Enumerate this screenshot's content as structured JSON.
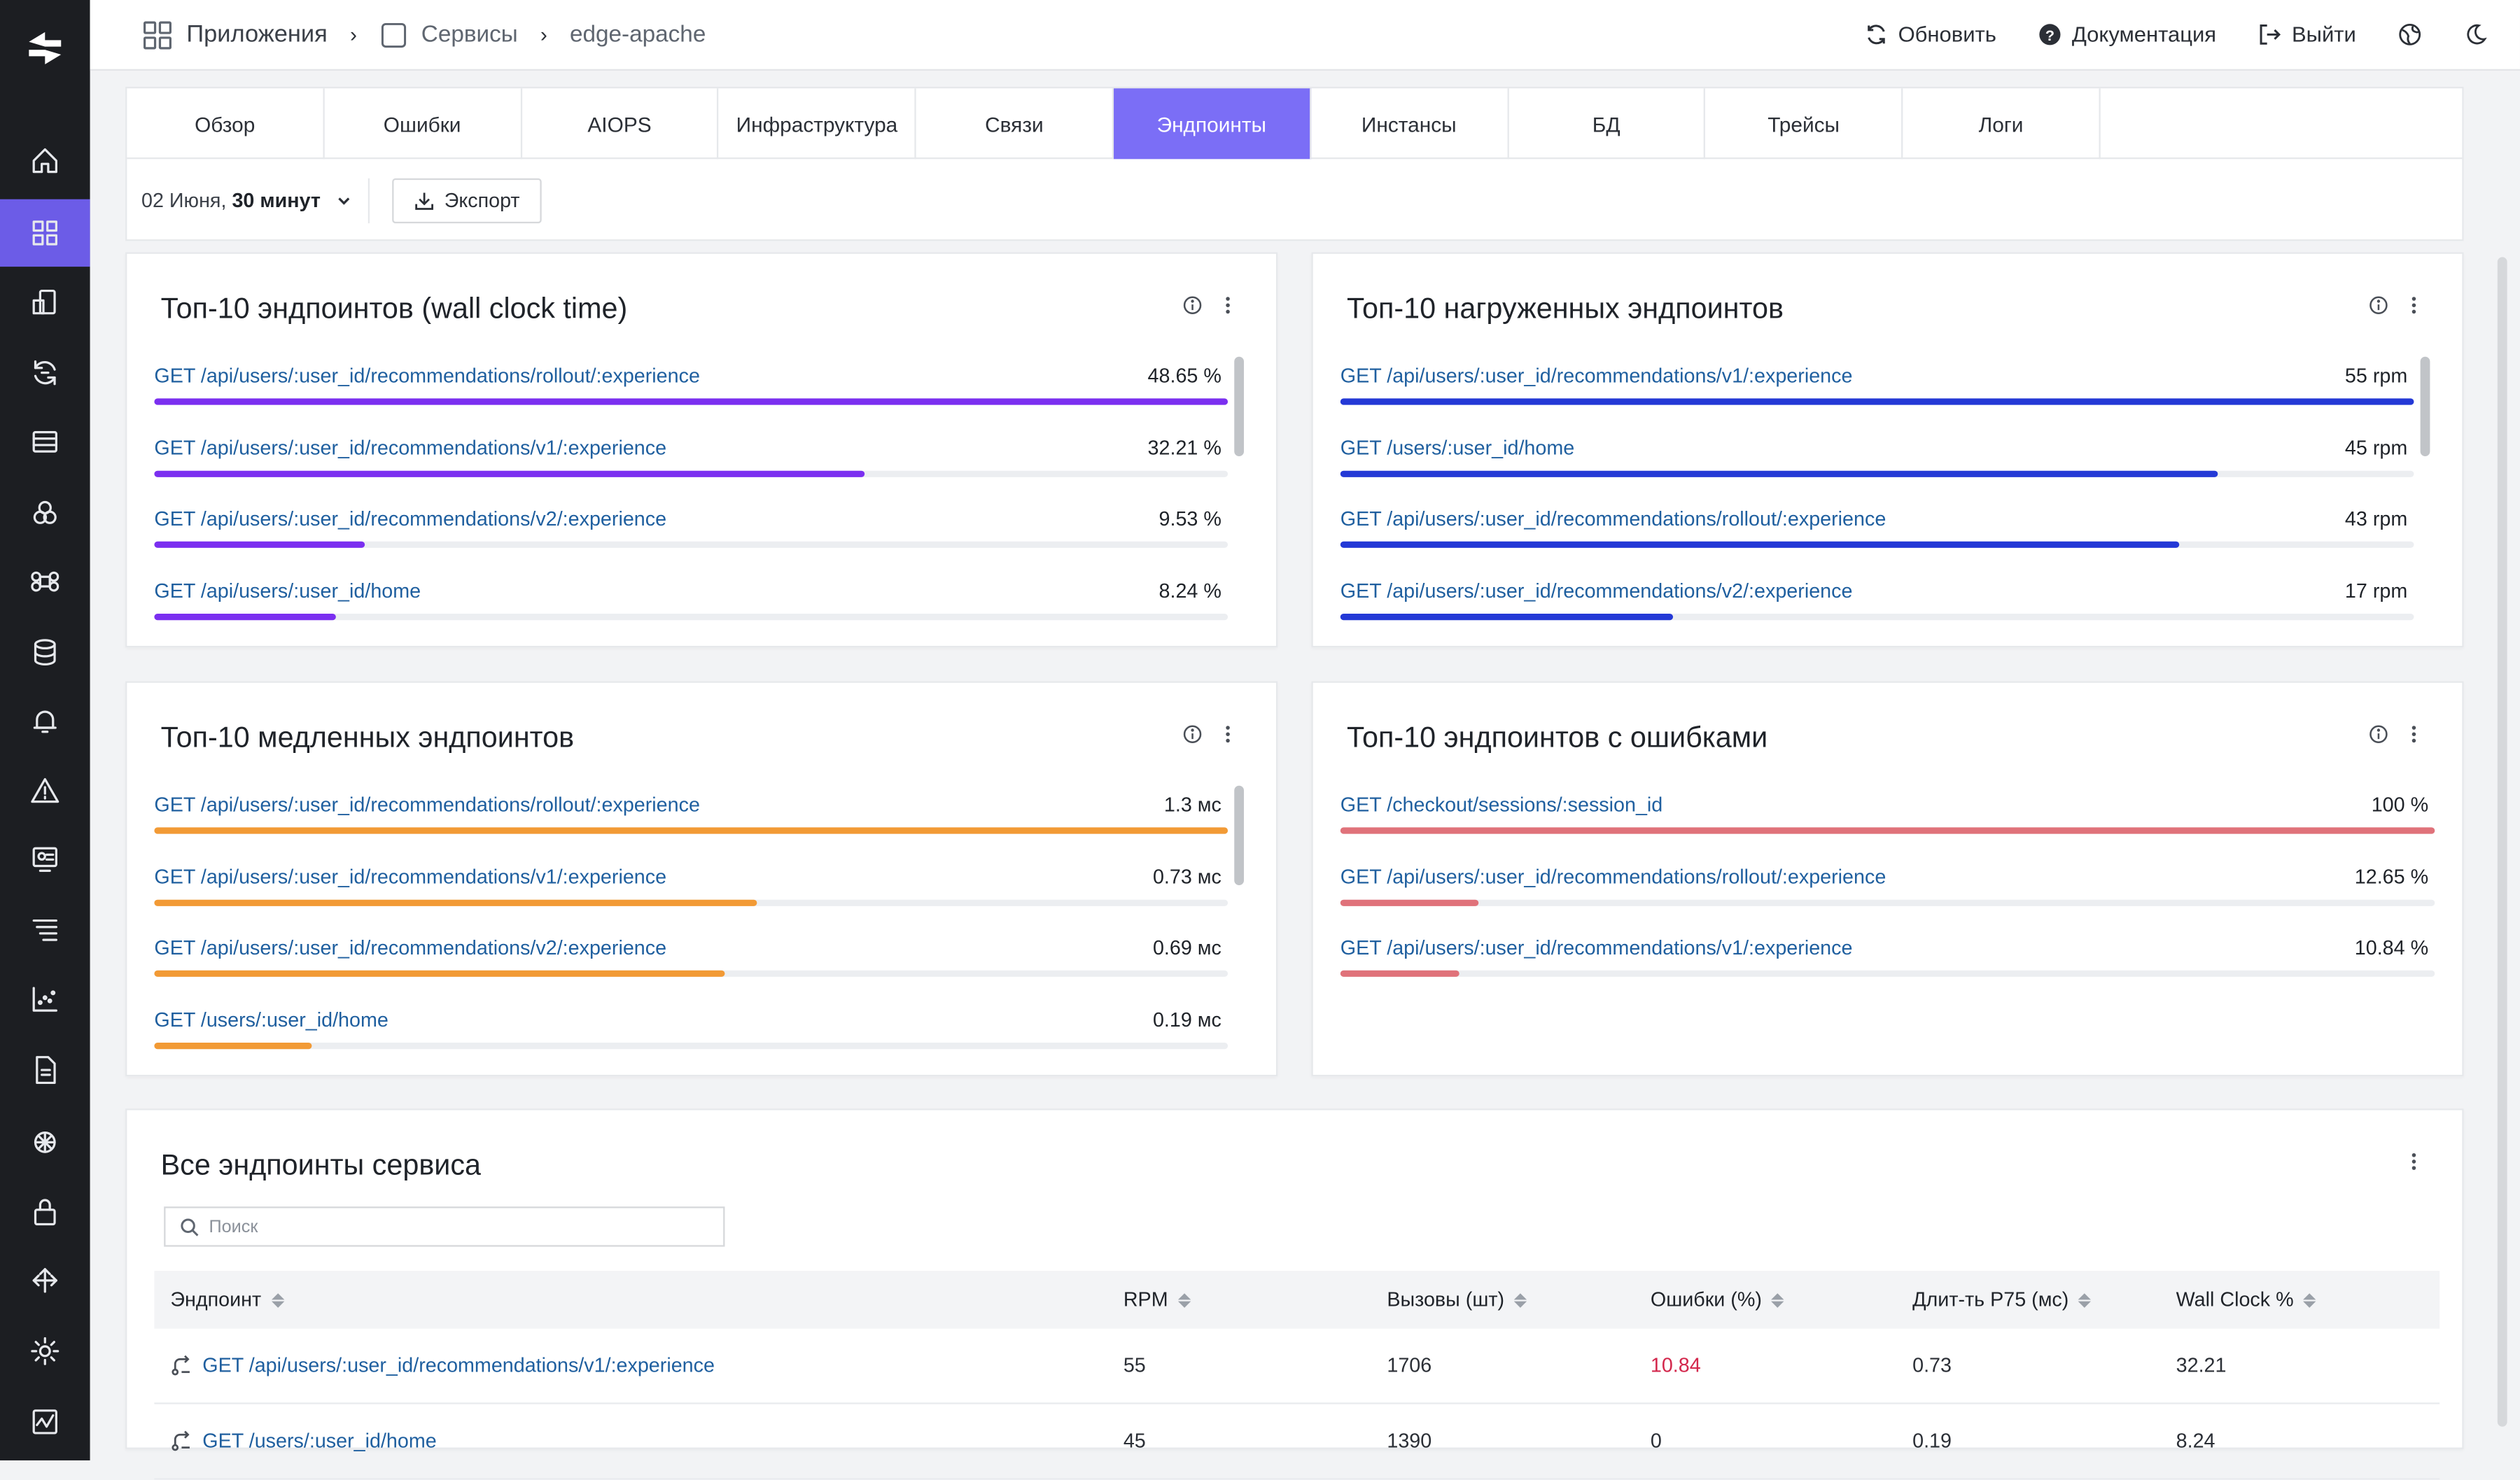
{
  "breadcrumb": {
    "apps": "Приложения",
    "services": "Сервисы",
    "service": "edge-apache"
  },
  "top_actions": {
    "refresh": "Обновить",
    "docs": "Документация",
    "logout": "Выйти"
  },
  "sidebar": {
    "active_index": 1,
    "icons": [
      "home-icon",
      "apps-grid-icon",
      "device-icon",
      "sync-icon",
      "server-icon",
      "hexagons-icon",
      "command-icon",
      "database-icon",
      "bell-icon",
      "warning-icon",
      "monitor-icon",
      "list-icon",
      "chart-icon",
      "document-icon",
      "network-icon",
      "lock-icon",
      "routes-icon",
      "gear-icon",
      "activity-icon"
    ]
  },
  "tabs": [
    "Обзор",
    "Ошибки",
    "AIOPS",
    "Инфраструктура",
    "Связи",
    "Эндпоинты",
    "Инстансы",
    "БД",
    "Трейсы",
    "Логи"
  ],
  "active_tab": "Эндпоинты",
  "filter": {
    "date": "02 Июня,",
    "range": "30 минут",
    "export": "Экспорт"
  },
  "cards": {
    "wall": {
      "title": "Топ-10 эндпоинтов (wall clock time)",
      "color": "#7b2ff0",
      "items": [
        {
          "label": "GET /api/users/:user_id/recommendations/rollout/:experience",
          "value": "48.65 %",
          "fraction": 1.0
        },
        {
          "label": "GET /api/users/:user_id/recommendations/v1/:experience",
          "value": "32.21 %",
          "fraction": 0.662
        },
        {
          "label": "GET /api/users/:user_id/recommendations/v2/:experience",
          "value": "9.53 %",
          "fraction": 0.196
        },
        {
          "label": "GET /api/users/:user_id/home",
          "value": "8.24 %",
          "fraction": 0.169
        }
      ]
    },
    "load": {
      "title": "Топ-10 нагруженных эндпоинтов",
      "color": "#2439d6",
      "items": [
        {
          "label": "GET /api/users/:user_id/recommendations/v1/:experience",
          "value": "55 rpm",
          "fraction": 1.0
        },
        {
          "label": "GET /users/:user_id/home",
          "value": "45 rpm",
          "fraction": 0.818
        },
        {
          "label": "GET /api/users/:user_id/recommendations/rollout/:experience",
          "value": "43 rpm",
          "fraction": 0.782
        },
        {
          "label": "GET /api/users/:user_id/recommendations/v2/:experience",
          "value": "17 rpm",
          "fraction": 0.31
        }
      ]
    },
    "slow": {
      "title": "Топ-10 медленных эндпоинтов",
      "color": "#f29a35",
      "items": [
        {
          "label": "GET /api/users/:user_id/recommendations/rollout/:experience",
          "value": "1.3 мс",
          "fraction": 1.0
        },
        {
          "label": "GET /api/users/:user_id/recommendations/v1/:experience",
          "value": "0.73 мс",
          "fraction": 0.562
        },
        {
          "label": "GET /api/users/:user_id/recommendations/v2/:experience",
          "value": "0.69 мс",
          "fraction": 0.531
        },
        {
          "label": "GET /users/:user_id/home",
          "value": "0.19 мс",
          "fraction": 0.146
        }
      ]
    },
    "errors": {
      "title": "Топ-10 эндпоинтов с ошибками",
      "color": "#e0727a",
      "items": [
        {
          "label": "GET /checkout/sessions/:session_id",
          "value": "100 %",
          "fraction": 1.0
        },
        {
          "label": "GET /api/users/:user_id/recommendations/rollout/:experience",
          "value": "12.65 %",
          "fraction": 0.127
        },
        {
          "label": "GET /api/users/:user_id/recommendations/v1/:experience",
          "value": "10.84 %",
          "fraction": 0.108
        }
      ]
    }
  },
  "table": {
    "title": "Все эндпоинты сервиса",
    "search_placeholder": "Поиск",
    "columns": [
      "Эндпоинт",
      "RPM",
      "Вызовы (шт)",
      "Ошибки (%)",
      "Длит-ть P75 (мс)",
      "Wall Clock %"
    ],
    "rows": [
      {
        "endpoint": "GET /api/users/:user_id/recommendations/v1/:experience",
        "rpm": "55",
        "calls": "1706",
        "errors": "10.84",
        "p75": "0.73",
        "wall": "32.21",
        "error_highlight": true
      },
      {
        "endpoint": "GET /users/:user_id/home",
        "rpm": "45",
        "calls": "1390",
        "errors": "0",
        "p75": "0.19",
        "wall": "8.24",
        "error_highlight": false
      }
    ]
  }
}
